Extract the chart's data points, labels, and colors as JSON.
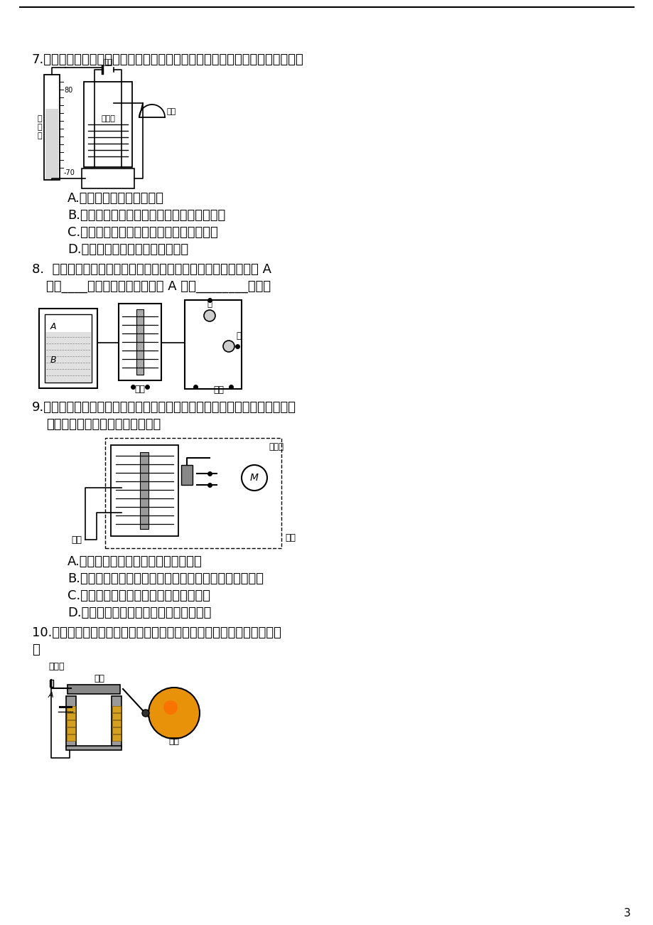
{
  "bg_color": "#ffffff",
  "page_number": "3",
  "q7_text": "7.　如图是温度自动报警器的原理图，以下说法中不正确的是（　　　　　　）",
  "q7_A": "A.　温度计中的水銀是导体",
  "q7_B": "B.　温度计是根据液体热膨冷缩的性质工作的",
  "q7_C": "C.　报警器中的电磁铁运用了电流的热效应",
  "q7_D": "D.　电磁铁继电器是一种电路开关",
  "q8_line1": "8.　如图所示是一种水位自动报警器原理图，水位没有到达金属块 ｩ",
  "q8_line2": "时，　　灯亮，水位到达金属块 ｩ 时，　　　　灯亮。",
  "q8_line1_plain": "8.  如图所示是一种水位自动报警器原理图，水位没有到达金属块 A",
  "q8_line2_plain": "时，____灯亮，水位到达金属块 A 时，________灯亮。",
  "q9_line1": "9.　如图所示，电磁继电器能通过低压控制电路间接地控制高压工作电路。下",
  "q9_line2": "列说法正确的是（　　　　　　）",
  "q9_A": "A.　连有电动机的电路是低压控制电路",
  "q9_B": "B.　电磁继电器实际是一个由电磁铁控制电路通断的开关",
  "q9_C": "C.　利用电磁继电器主要是为了节约用电",
  "q9_D": "D.　利用电磁继电器主要是为了操作方便",
  "q10_line1": "10.如图是直流电铃的工作原理图。关于电铃工作时的说法不正确的是（",
  "q10_line2": "）",
  "fs": 13,
  "fs_small": 9
}
